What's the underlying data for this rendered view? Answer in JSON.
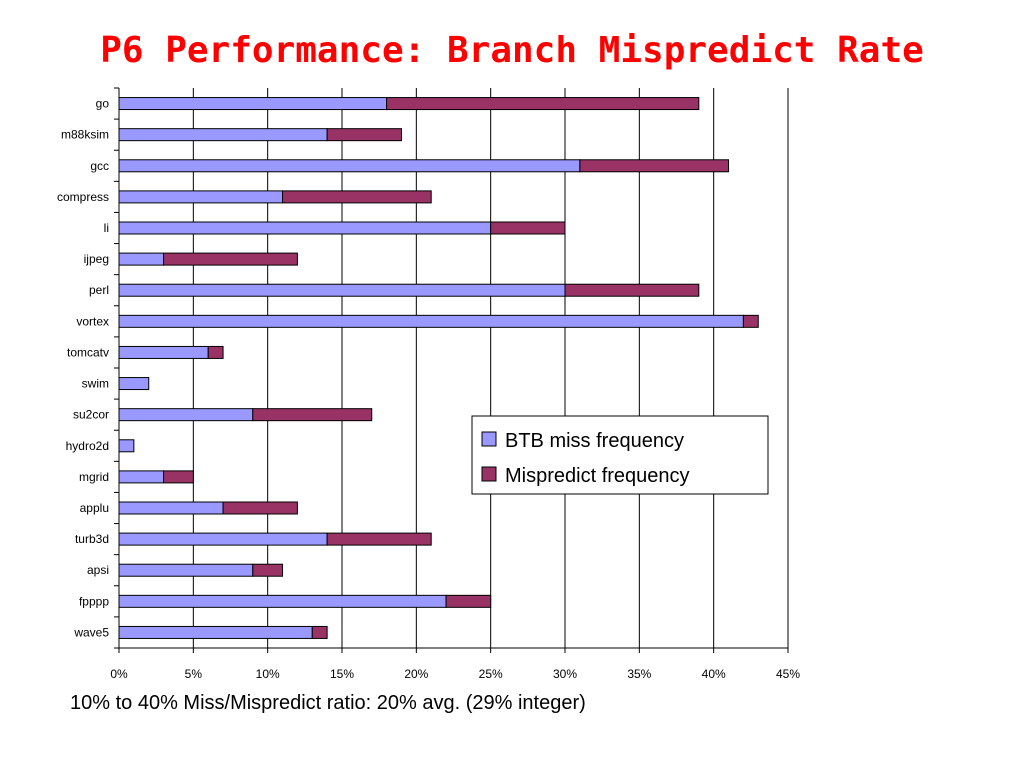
{
  "slide": {
    "title": "P6 Performance: Branch Mispredict Rate",
    "footnote": "10% to 40% Miss/Mispredict ratio: 20% avg. (29% integer)"
  },
  "colors": {
    "title": "#ff0000",
    "btb_miss": "#9999ff",
    "mispredict": "#993366"
  },
  "chart_data": {
    "type": "bar",
    "orientation": "horizontal",
    "stacked": true,
    "title": "",
    "xlabel": "",
    "ylabel": "",
    "xlim": [
      0,
      45
    ],
    "x_ticks": [
      0,
      5,
      10,
      15,
      20,
      25,
      30,
      35,
      40,
      45
    ],
    "x_tick_labels": [
      "0%",
      "5%",
      "10%",
      "15%",
      "20%",
      "25%",
      "30%",
      "35%",
      "40%",
      "45%"
    ],
    "grid": "vertical gridlines",
    "legend_position": "right",
    "categories": [
      "go",
      "m88ksim",
      "gcc",
      "compress",
      "li",
      "ijpeg",
      "perl",
      "vortex",
      "tomcatv",
      "swim",
      "su2cor",
      "hydro2d",
      "mgrid",
      "applu",
      "turb3d",
      "apsi",
      "fpppp",
      "wave5"
    ],
    "series": [
      {
        "name": "BTB miss frequency",
        "values": [
          18,
          14,
          31,
          11,
          25,
          3,
          30,
          42,
          6,
          2,
          9,
          1,
          3,
          7,
          14,
          9,
          22,
          13
        ]
      },
      {
        "name": "Mispredict frequency",
        "values": [
          21,
          5,
          10,
          10,
          5,
          9,
          9,
          1,
          1,
          0,
          8,
          0,
          2,
          5,
          7,
          2,
          3,
          1
        ]
      }
    ]
  }
}
